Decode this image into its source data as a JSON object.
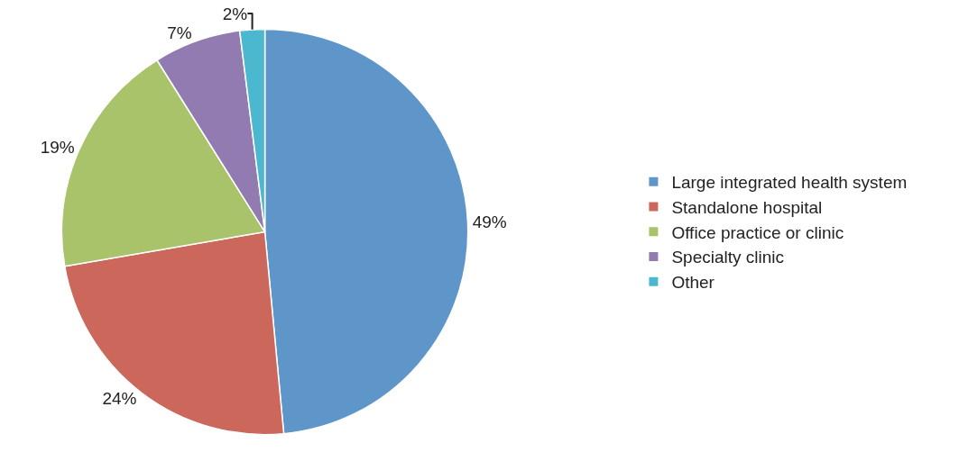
{
  "chart_data": {
    "type": "pie",
    "categories": [
      "Large integrated health system",
      "Standalone hospital",
      "Office practice or clinic",
      "Specialty clinic",
      "Other"
    ],
    "values": [
      49,
      24,
      19,
      7,
      2
    ],
    "value_labels": [
      "49%",
      "24%",
      "19%",
      "7%",
      "2%"
    ],
    "colors": [
      "#5f96c9",
      "#cc675c",
      "#a9c36a",
      "#927bb0",
      "#4bb8d0"
    ],
    "legend": "right"
  }
}
